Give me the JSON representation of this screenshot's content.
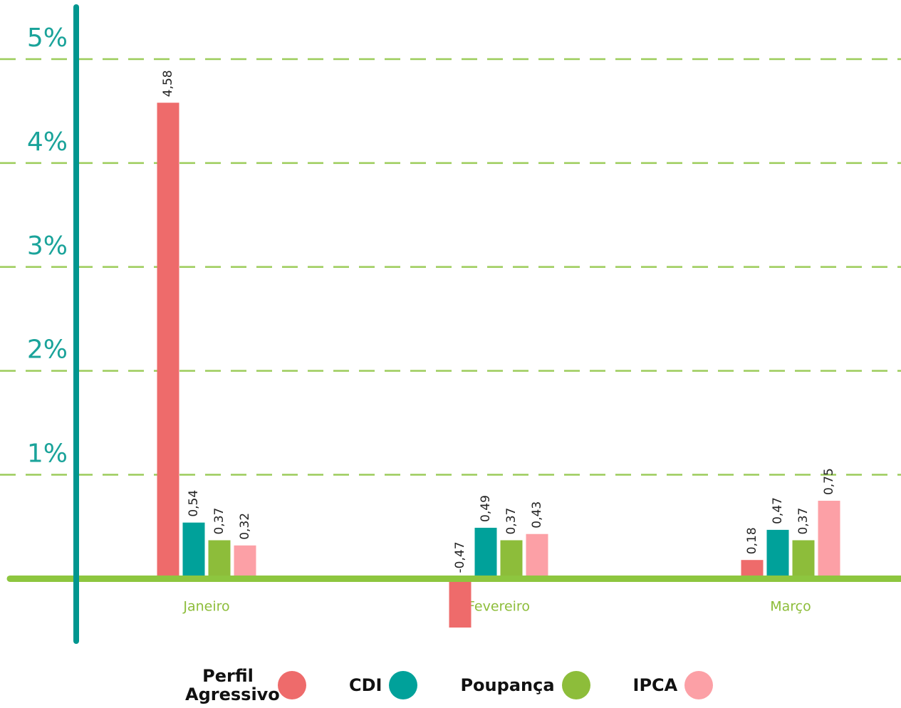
{
  "chart_data": {
    "type": "bar",
    "categories": [
      "Janeiro",
      "Fevereiro",
      "Março"
    ],
    "series": [
      {
        "name": "Perfil Agressivo",
        "color": "#ee6b6b",
        "values": [
          4.58,
          -0.47,
          0.18
        ],
        "value_labels": [
          "4,58",
          "-0,47",
          "0,18"
        ]
      },
      {
        "name": "CDI",
        "color": "#00a19a",
        "values": [
          0.54,
          0.49,
          0.47
        ],
        "value_labels": [
          "0,54",
          "0,49",
          "0,47"
        ]
      },
      {
        "name": "Poupança",
        "color": "#8dbd3a",
        "values": [
          0.37,
          0.37,
          0.37
        ],
        "value_labels": [
          "0,37",
          "0,37",
          "0,37"
        ]
      },
      {
        "name": "IPCA",
        "color": "#fca0a6",
        "values": [
          0.32,
          0.43,
          0.75
        ],
        "value_labels": [
          "0,32",
          "0,43",
          "0,75"
        ]
      }
    ],
    "ylim": [
      -0.6,
      5.5
    ],
    "yticks": [
      {
        "value": 1,
        "label": "1%"
      },
      {
        "value": 2,
        "label": "2%"
      },
      {
        "value": 3,
        "label": "3%"
      },
      {
        "value": 4,
        "label": "4%"
      },
      {
        "value": 5,
        "label": "5%"
      }
    ],
    "grid": true
  }
}
